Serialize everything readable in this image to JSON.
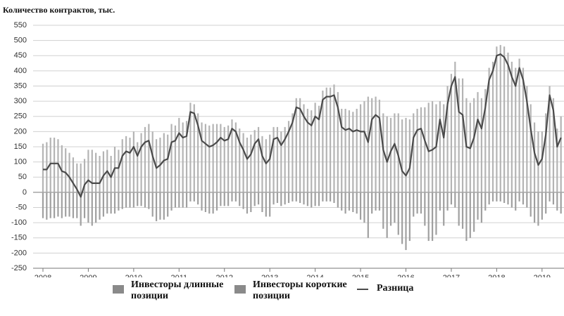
{
  "chart_data": {
    "type": "bar",
    "title": "Количество контрактов, тыс.",
    "categories": [
      "2008",
      null,
      null,
      null,
      null,
      null,
      null,
      null,
      null,
      null,
      null,
      null,
      "2009",
      null,
      null,
      null,
      null,
      null,
      null,
      null,
      null,
      null,
      null,
      null,
      "2010",
      null,
      null,
      null,
      null,
      null,
      null,
      null,
      null,
      null,
      null,
      null,
      "2011",
      null,
      null,
      null,
      null,
      null,
      null,
      null,
      null,
      null,
      null,
      null,
      "2012",
      null,
      null,
      null,
      null,
      null,
      null,
      null,
      null,
      null,
      null,
      null,
      "2013",
      null,
      null,
      null,
      null,
      null,
      null,
      null,
      null,
      null,
      null,
      null,
      "2014",
      null,
      null,
      null,
      null,
      null,
      null,
      null,
      null,
      null,
      null,
      null,
      "2015",
      null,
      null,
      null,
      null,
      null,
      null,
      null,
      null,
      null,
      null,
      null,
      "2016",
      null,
      null,
      null,
      null,
      null,
      null,
      null,
      null,
      null,
      null,
      null,
      "2017",
      null,
      null,
      null,
      null,
      null,
      null,
      null,
      null,
      null,
      null,
      null,
      "2018",
      null,
      null,
      null,
      null,
      null,
      null,
      null,
      null,
      null,
      null,
      null,
      "2019",
      null,
      null,
      null,
      null,
      null
    ],
    "series": [
      {
        "name": "Инвесторы длинные позиции",
        "type": "bar",
        "color": "#b4b4b4",
        "legend_color": "#8a8a8a",
        "values": [
          160,
          165,
          180,
          180,
          175,
          155,
          145,
          130,
          115,
          95,
          95,
          110,
          140,
          140,
          130,
          120,
          135,
          140,
          120,
          150,
          140,
          175,
          185,
          180,
          200,
          165,
          195,
          215,
          225,
          200,
          175,
          180,
          195,
          190,
          225,
          220,
          245,
          230,
          235,
          295,
          290,
          260,
          230,
          225,
          220,
          225,
          225,
          225,
          215,
          220,
          240,
          230,
          210,
          195,
          180,
          190,
          205,
          215,
          185,
          175,
          190,
          215,
          215,
          200,
          215,
          235,
          260,
          310,
          310,
          290,
          275,
          270,
          295,
          285,
          335,
          345,
          345,
          355,
          330,
          275,
          275,
          270,
          265,
          275,
          290,
          300,
          315,
          310,
          315,
          305,
          260,
          250,
          245,
          260,
          260,
          240,
          245,
          240,
          260,
          275,
          280,
          280,
          295,
          300,
          290,
          300,
          290,
          350,
          390,
          430,
          375,
          375,
          310,
          295,
          310,
          330,
          310,
          340,
          410,
          430,
          480,
          485,
          480,
          460,
          430,
          410,
          440,
          410,
          350,
          290,
          230,
          200,
          200,
          260,
          350,
          310,
          210,
          250
        ]
      },
      {
        "name": "Инвесторы короткие позиции",
        "type": "bar",
        "color": "#a0a0a0",
        "legend_color": "#8a8a8a",
        "values": [
          -85,
          -90,
          -85,
          -85,
          -80,
          -85,
          -80,
          -80,
          -85,
          -85,
          -110,
          -85,
          -100,
          -110,
          -100,
          -90,
          -80,
          -70,
          -70,
          -70,
          -60,
          -55,
          -50,
          -50,
          -50,
          -45,
          -45,
          -50,
          -55,
          -80,
          -95,
          -90,
          -90,
          -80,
          -60,
          -50,
          -50,
          -50,
          -50,
          -30,
          -30,
          -40,
          -60,
          -65,
          -70,
          -70,
          -60,
          -45,
          -45,
          -45,
          -30,
          -30,
          -45,
          -55,
          -70,
          -65,
          -45,
          -40,
          -65,
          -80,
          -80,
          -40,
          -35,
          -45,
          -40,
          -35,
          -30,
          -30,
          -35,
          -40,
          -45,
          -50,
          -45,
          -45,
          -30,
          -30,
          -30,
          -35,
          -50,
          -60,
          -70,
          -60,
          -65,
          -70,
          -90,
          -100,
          -150,
          -70,
          -60,
          -60,
          -120,
          -150,
          -110,
          -100,
          -140,
          -170,
          -190,
          -160,
          -80,
          -70,
          -70,
          -110,
          -160,
          -160,
          -140,
          -60,
          -110,
          -60,
          -40,
          -50,
          -110,
          -120,
          -160,
          -150,
          -130,
          -90,
          -100,
          -60,
          -40,
          -30,
          -30,
          -30,
          -35,
          -40,
          -50,
          -60,
          -30,
          -40,
          -50,
          -80,
          -100,
          -110,
          -90,
          -70,
          -30,
          -40,
          -60,
          -70
        ]
      },
      {
        "name": "Разница",
        "type": "line",
        "color": "#4a4a4a",
        "values": [
          75,
          75,
          95,
          95,
          95,
          70,
          65,
          50,
          30,
          10,
          -15,
          25,
          40,
          30,
          30,
          30,
          55,
          70,
          50,
          80,
          80,
          120,
          135,
          130,
          150,
          120,
          150,
          165,
          170,
          120,
          80,
          90,
          105,
          110,
          165,
          170,
          195,
          180,
          185,
          265,
          260,
          220,
          170,
          160,
          150,
          155,
          165,
          180,
          170,
          175,
          210,
          200,
          165,
          140,
          110,
          125,
          160,
          175,
          120,
          95,
          110,
          175,
          180,
          155,
          175,
          200,
          230,
          280,
          275,
          250,
          230,
          220,
          250,
          240,
          305,
          315,
          315,
          320,
          280,
          215,
          205,
          210,
          200,
          205,
          200,
          200,
          165,
          240,
          255,
          245,
          140,
          100,
          135,
          160,
          120,
          70,
          55,
          80,
          180,
          205,
          210,
          170,
          135,
          140,
          150,
          240,
          180,
          290,
          350,
          380,
          265,
          255,
          150,
          145,
          180,
          240,
          210,
          280,
          370,
          400,
          450,
          455,
          445,
          420,
          380,
          350,
          410,
          370,
          300,
          210,
          130,
          90,
          110,
          190,
          320,
          270,
          150,
          180
        ]
      }
    ],
    "ylim": [
      -250,
      550
    ],
    "yticks": [
      -250,
      -200,
      -150,
      -100,
      -50,
      0,
      50,
      100,
      150,
      200,
      250,
      300,
      350,
      400,
      450,
      500,
      550
    ],
    "grid": true
  }
}
